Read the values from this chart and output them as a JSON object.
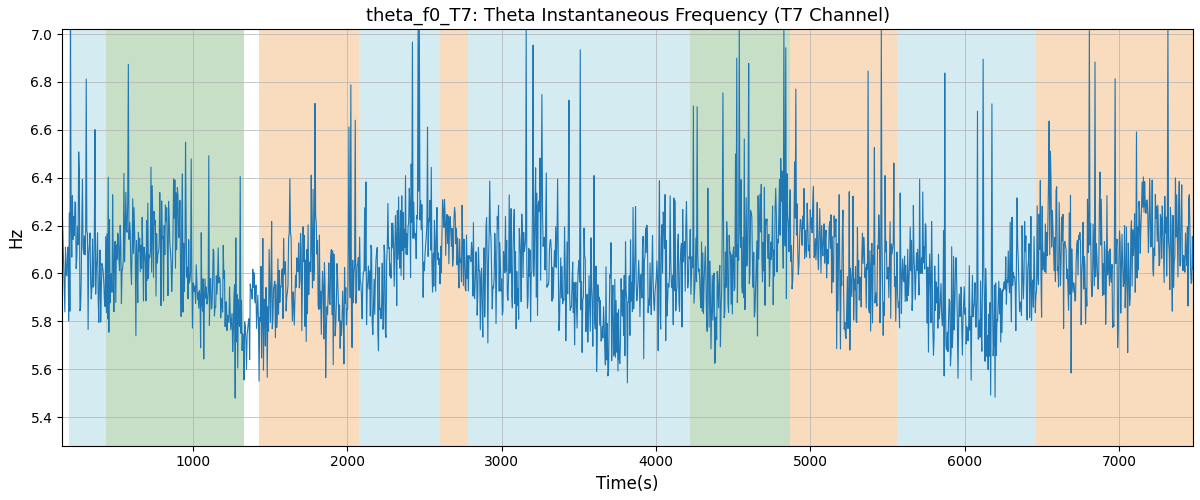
{
  "title": "theta_f0_T7: Theta Instantaneous Frequency (T7 Channel)",
  "xlabel": "Time(s)",
  "ylabel": "Hz",
  "xlim": [
    155,
    7480
  ],
  "ylim": [
    5.28,
    7.02
  ],
  "yticks": [
    5.4,
    5.6,
    5.8,
    6.0,
    6.2,
    6.4,
    6.6,
    6.8,
    7.0
  ],
  "xticks": [
    1000,
    2000,
    3000,
    4000,
    5000,
    6000,
    7000
  ],
  "line_color": "#1f77b4",
  "line_width": 0.8,
  "background_color": "#ffffff",
  "grid_color": "#b0b0b0",
  "bands": [
    {
      "xmin": 200,
      "xmax": 435,
      "color": "#add8e6",
      "alpha": 0.5
    },
    {
      "xmin": 435,
      "xmax": 1330,
      "color": "#90c090",
      "alpha": 0.5
    },
    {
      "xmin": 1430,
      "xmax": 2080,
      "color": "#f4b87c",
      "alpha": 0.5
    },
    {
      "xmin": 2080,
      "xmax": 2600,
      "color": "#add8e6",
      "alpha": 0.5
    },
    {
      "xmin": 2600,
      "xmax": 2780,
      "color": "#f4b87c",
      "alpha": 0.5
    },
    {
      "xmin": 2780,
      "xmax": 4080,
      "color": "#add8e6",
      "alpha": 0.5
    },
    {
      "xmin": 4080,
      "xmax": 4220,
      "color": "#add8e6",
      "alpha": 0.5
    },
    {
      "xmin": 4220,
      "xmax": 4870,
      "color": "#90c090",
      "alpha": 0.5
    },
    {
      "xmin": 4870,
      "xmax": 5560,
      "color": "#f4b87c",
      "alpha": 0.5
    },
    {
      "xmin": 5560,
      "xmax": 6460,
      "color": "#add8e6",
      "alpha": 0.5
    },
    {
      "xmin": 6460,
      "xmax": 7480,
      "color": "#f4b87c",
      "alpha": 0.5
    }
  ],
  "figsize": [
    12.0,
    5.0
  ],
  "dpi": 100
}
